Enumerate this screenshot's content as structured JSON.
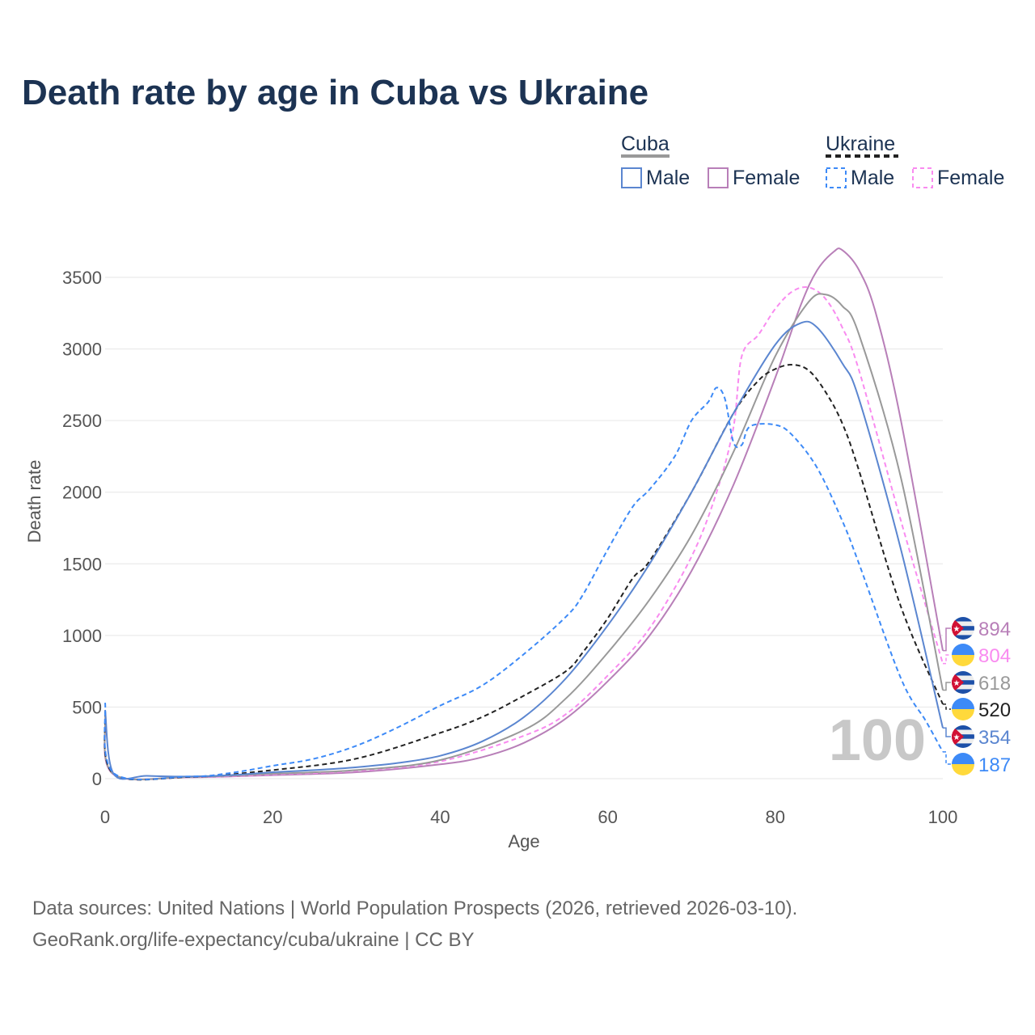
{
  "chart_data": {
    "type": "line",
    "title": "Death rate by age in Cuba vs Ukraine",
    "xlabel": "Age",
    "ylabel": "Death rate",
    "xlim": [
      0,
      100
    ],
    "ylim": [
      0,
      3700
    ],
    "xticks": [
      0,
      20,
      40,
      60,
      80,
      100
    ],
    "yticks": [
      0,
      500,
      1000,
      1500,
      2000,
      2500,
      3000,
      3500
    ],
    "watermark_year": "100",
    "legend": {
      "groups": [
        {
          "name": "Cuba",
          "items": [
            "Male",
            "Female"
          ]
        },
        {
          "name": "Ukraine",
          "items": [
            "Male",
            "Female"
          ]
        }
      ],
      "placement": "top-right"
    },
    "series": [
      {
        "name": "Cuba Female",
        "country": "cuba",
        "color": "#b87fb8",
        "dash": false,
        "end_label": "894",
        "points": [
          [
            0,
            400
          ],
          [
            1,
            30
          ],
          [
            10,
            10
          ],
          [
            20,
            25
          ],
          [
            30,
            45
          ],
          [
            40,
            100
          ],
          [
            45,
            150
          ],
          [
            50,
            250
          ],
          [
            55,
            420
          ],
          [
            60,
            680
          ],
          [
            65,
            1000
          ],
          [
            70,
            1450
          ],
          [
            75,
            2050
          ],
          [
            80,
            2800
          ],
          [
            83,
            3300
          ],
          [
            85,
            3550
          ],
          [
            87,
            3680
          ],
          [
            88,
            3690
          ],
          [
            90,
            3550
          ],
          [
            92,
            3250
          ],
          [
            95,
            2500
          ],
          [
            100,
            894
          ]
        ]
      },
      {
        "name": "Ukraine Female",
        "country": "ukraine",
        "color": "#f98bf0",
        "dash": true,
        "end_label": "804",
        "points": [
          [
            0,
            420
          ],
          [
            1,
            30
          ],
          [
            10,
            10
          ],
          [
            20,
            30
          ],
          [
            30,
            55
          ],
          [
            40,
            120
          ],
          [
            50,
            300
          ],
          [
            55,
            450
          ],
          [
            60,
            720
          ],
          [
            65,
            1050
          ],
          [
            70,
            1550
          ],
          [
            73,
            2000
          ],
          [
            75,
            2450
          ],
          [
            76,
            2950
          ],
          [
            78,
            3100
          ],
          [
            80,
            3280
          ],
          [
            82,
            3400
          ],
          [
            84,
            3430
          ],
          [
            86,
            3350
          ],
          [
            88,
            3150
          ],
          [
            90,
            2850
          ],
          [
            95,
            1800
          ],
          [
            100,
            804
          ]
        ]
      },
      {
        "name": "Cuba",
        "country": "cuba",
        "color": "#999999",
        "dash": false,
        "end_label": "618",
        "points": [
          [
            0,
            440
          ],
          [
            1,
            32
          ],
          [
            10,
            12
          ],
          [
            20,
            35
          ],
          [
            30,
            60
          ],
          [
            40,
            130
          ],
          [
            50,
            340
          ],
          [
            55,
            560
          ],
          [
            60,
            880
          ],
          [
            65,
            1250
          ],
          [
            70,
            1700
          ],
          [
            75,
            2280
          ],
          [
            80,
            2950
          ],
          [
            84,
            3330
          ],
          [
            86,
            3380
          ],
          [
            88,
            3300
          ],
          [
            90,
            3100
          ],
          [
            95,
            2100
          ],
          [
            100,
            618
          ]
        ]
      },
      {
        "name": "Ukraine",
        "country": "ukraine",
        "color": "#222222",
        "dash": true,
        "end_label": "520",
        "points": [
          [
            0,
            470
          ],
          [
            1,
            35
          ],
          [
            10,
            12
          ],
          [
            20,
            60
          ],
          [
            30,
            140
          ],
          [
            40,
            320
          ],
          [
            45,
            430
          ],
          [
            50,
            580
          ],
          [
            55,
            750
          ],
          [
            57,
            880
          ],
          [
            60,
            1120
          ],
          [
            63,
            1400
          ],
          [
            65,
            1520
          ],
          [
            70,
            2000
          ],
          [
            75,
            2550
          ],
          [
            78,
            2780
          ],
          [
            80,
            2860
          ],
          [
            82,
            2890
          ],
          [
            84,
            2850
          ],
          [
            86,
            2700
          ],
          [
            88,
            2480
          ],
          [
            90,
            2150
          ],
          [
            95,
            1200
          ],
          [
            100,
            520
          ]
        ]
      },
      {
        "name": "Cuba Male",
        "country": "cuba",
        "color": "#5b86d0",
        "dash": false,
        "end_label": "354",
        "points": [
          [
            0,
            480
          ],
          [
            1,
            35
          ],
          [
            5,
            20
          ],
          [
            10,
            15
          ],
          [
            15,
            25
          ],
          [
            20,
            45
          ],
          [
            25,
            60
          ],
          [
            30,
            80
          ],
          [
            35,
            110
          ],
          [
            40,
            160
          ],
          [
            45,
            260
          ],
          [
            50,
            430
          ],
          [
            55,
            700
          ],
          [
            60,
            1070
          ],
          [
            65,
            1500
          ],
          [
            70,
            2000
          ],
          [
            75,
            2550
          ],
          [
            80,
            3030
          ],
          [
            83,
            3180
          ],
          [
            85,
            3150
          ],
          [
            88,
            2900
          ],
          [
            90,
            2650
          ],
          [
            95,
            1600
          ],
          [
            100,
            354
          ]
        ]
      },
      {
        "name": "Ukraine Male",
        "country": "ukraine",
        "color": "#3d8af7",
        "dash": true,
        "end_label": "187",
        "points": [
          [
            0,
            530
          ],
          [
            1,
            40
          ],
          [
            10,
            15
          ],
          [
            15,
            40
          ],
          [
            20,
            90
          ],
          [
            25,
            140
          ],
          [
            30,
            230
          ],
          [
            35,
            360
          ],
          [
            40,
            510
          ],
          [
            45,
            650
          ],
          [
            50,
            870
          ],
          [
            55,
            1130
          ],
          [
            57,
            1280
          ],
          [
            60,
            1600
          ],
          [
            63,
            1900
          ],
          [
            65,
            2020
          ],
          [
            68,
            2250
          ],
          [
            70,
            2500
          ],
          [
            72,
            2630
          ],
          [
            73,
            2730
          ],
          [
            74,
            2650
          ],
          [
            75,
            2350
          ],
          [
            76,
            2330
          ],
          [
            77,
            2460
          ],
          [
            80,
            2470
          ],
          [
            82,
            2400
          ],
          [
            85,
            2170
          ],
          [
            88,
            1800
          ],
          [
            90,
            1500
          ],
          [
            95,
            700
          ],
          [
            98,
            400
          ],
          [
            100,
            187
          ]
        ]
      }
    ]
  },
  "legend_labels": {
    "cuba": "Cuba",
    "ukraine": "Ukraine",
    "male": "Male",
    "female": "Female"
  },
  "footer": {
    "line1": "Data sources: United Nations | World Population Prospects (2026, retrieved 2026-03-10).",
    "line2": "GeoRank.org/life-expectancy/cuba/ukraine | CC BY"
  }
}
